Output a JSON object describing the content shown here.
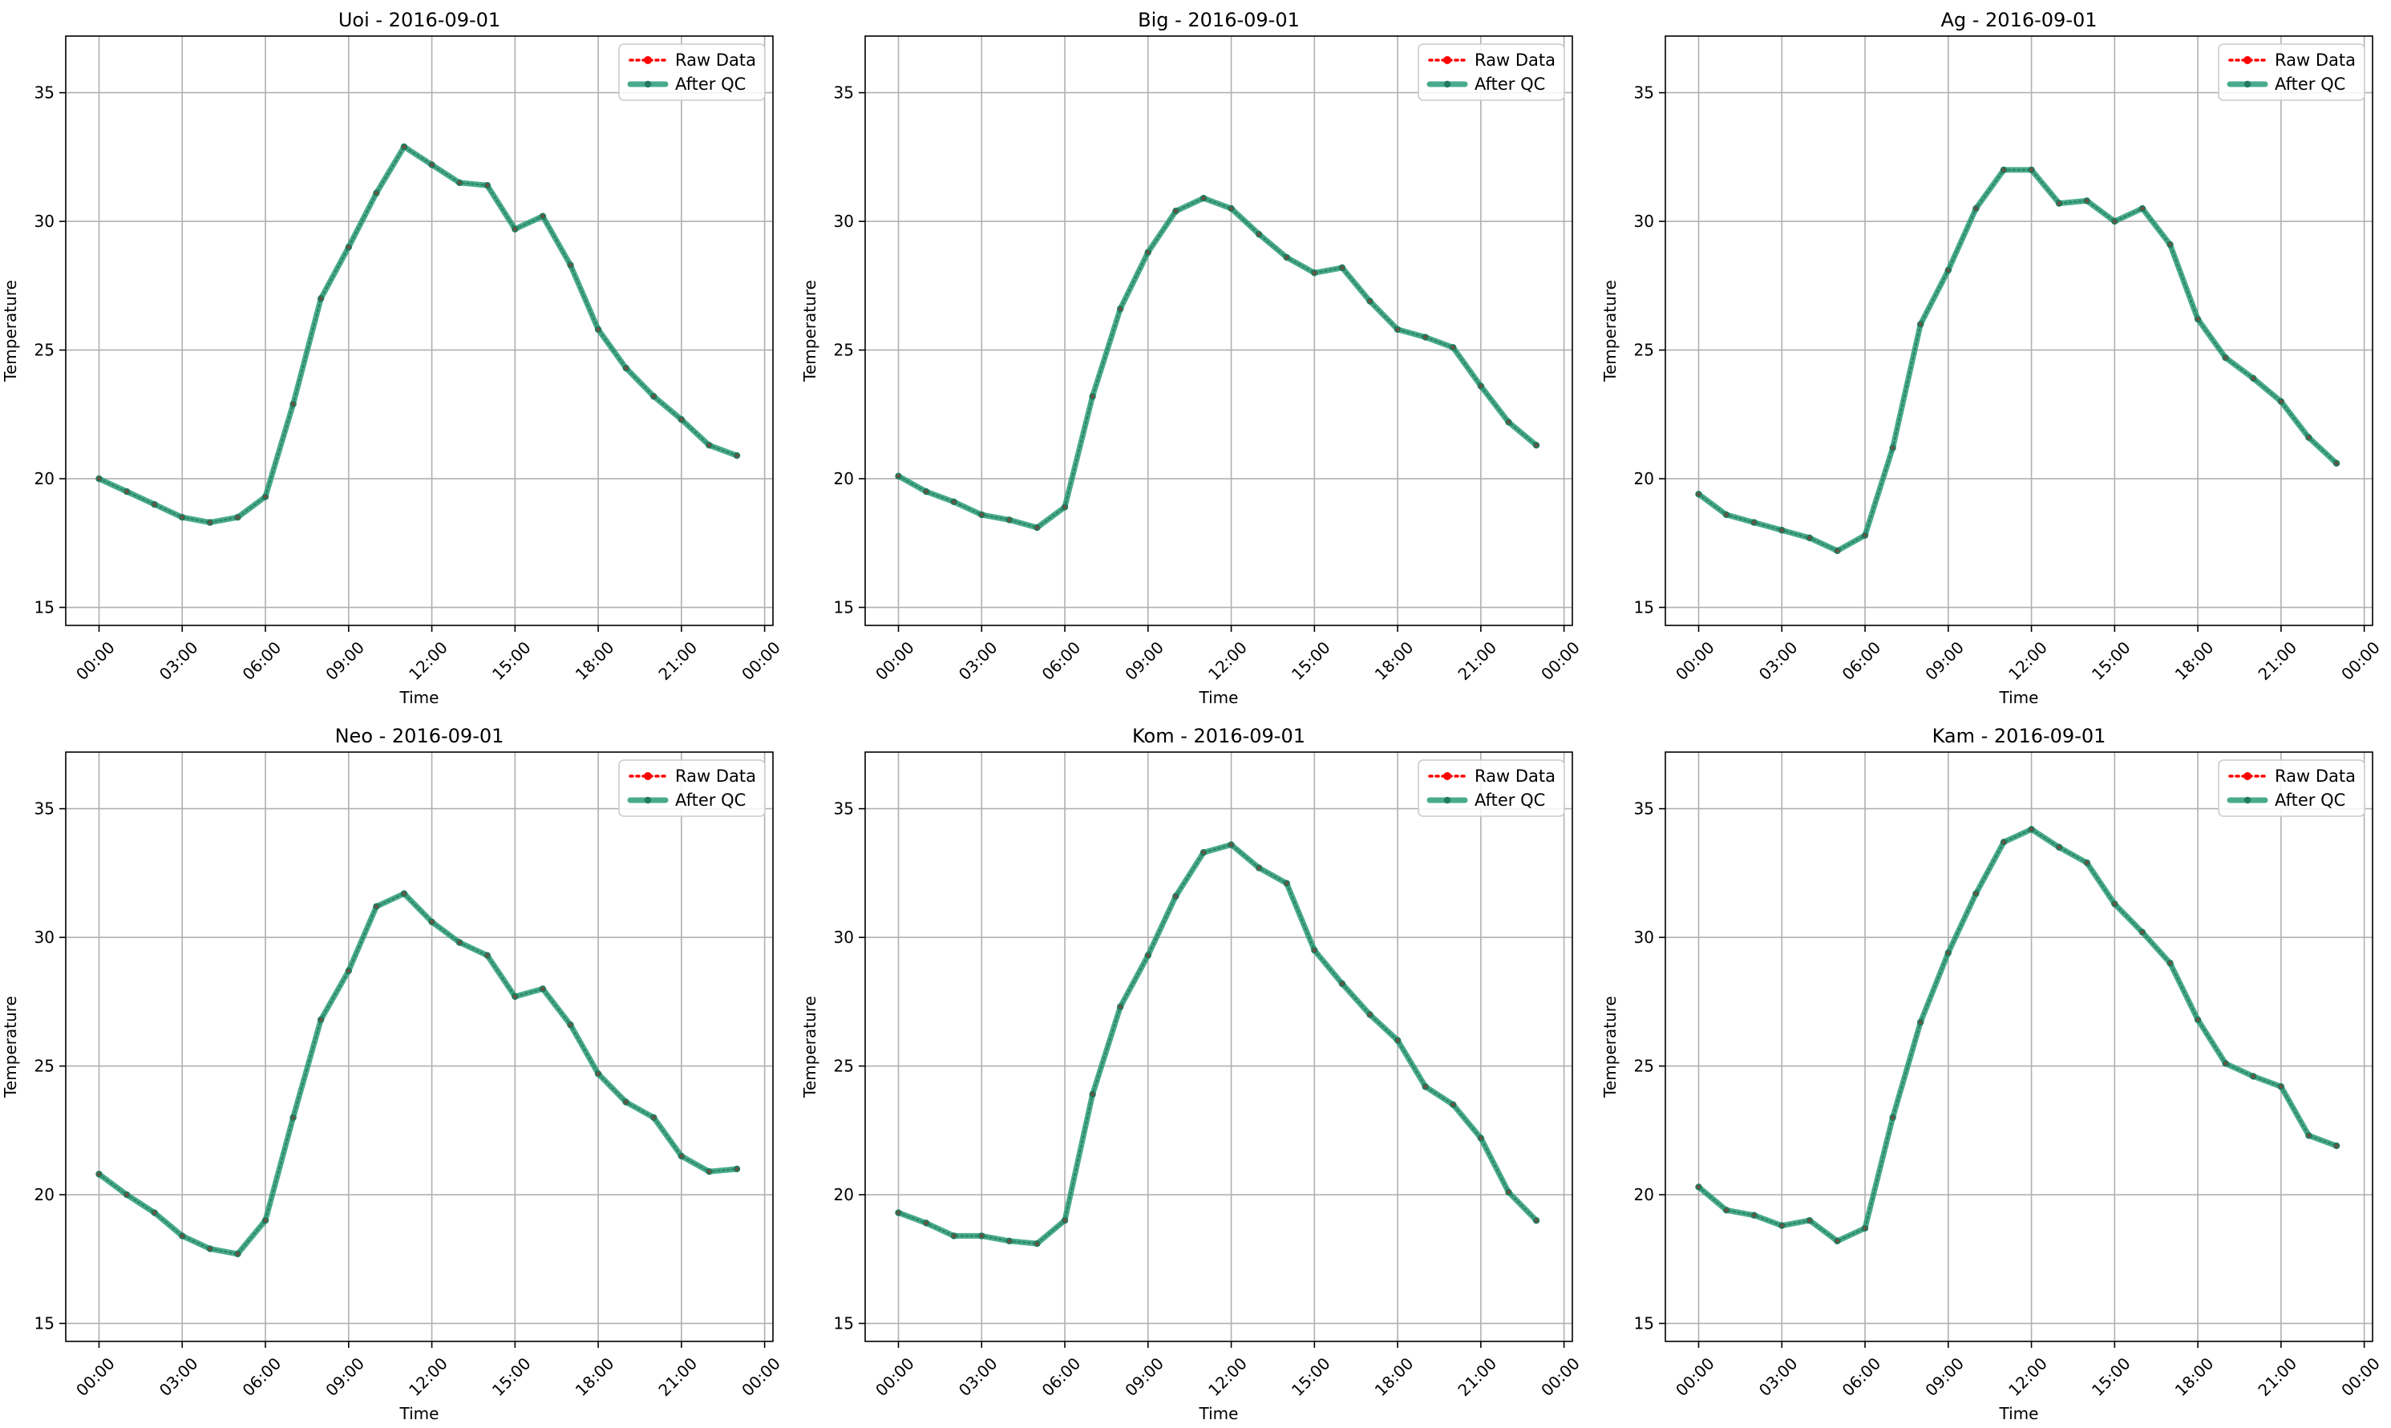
{
  "figure": {
    "background": "#ffffff"
  },
  "colors": {
    "raw": "#ff0000",
    "qc": "#2a9d78",
    "qc_marker": "#237a5f",
    "grid": "#b0b0b0"
  },
  "chart_data": [
    {
      "type": "line",
      "title": "Uoi - 2016-09-01",
      "xlabel": "Time",
      "ylabel": "Temperature",
      "xlim": [
        -1.2,
        24.3
      ],
      "ylim": [
        14.3,
        37.2
      ],
      "x_ticks": [
        0,
        3,
        6,
        9,
        12,
        15,
        18,
        21,
        24
      ],
      "x_tick_labels": [
        "00:00",
        "03:00",
        "06:00",
        "09:00",
        "12:00",
        "15:00",
        "18:00",
        "21:00",
        "00:00"
      ],
      "y_ticks": [
        15,
        20,
        25,
        30,
        35
      ],
      "y_tick_labels": [
        "15",
        "20",
        "25",
        "30",
        "35"
      ],
      "grid": true,
      "legend_position": "top-right",
      "x": [
        0,
        1,
        2,
        3,
        4,
        5,
        6,
        7,
        8,
        9,
        10,
        11,
        12,
        13,
        14,
        15,
        16,
        17,
        18,
        19,
        20,
        21,
        22,
        23
      ],
      "series": [
        {
          "name": "Raw Data",
          "style": "dotted",
          "values": [
            20.0,
            19.5,
            19.0,
            18.5,
            18.3,
            18.5,
            19.3,
            22.9,
            27.0,
            29.0,
            31.1,
            32.9,
            32.2,
            31.5,
            31.4,
            29.7,
            30.2,
            28.3,
            25.8,
            24.3,
            23.2,
            22.3,
            21.3,
            20.9
          ]
        },
        {
          "name": "After QC",
          "style": "solid",
          "values": [
            20.0,
            19.5,
            19.0,
            18.5,
            18.3,
            18.5,
            19.3,
            22.9,
            27.0,
            29.0,
            31.1,
            32.9,
            32.2,
            31.5,
            31.4,
            29.7,
            30.2,
            28.3,
            25.8,
            24.3,
            23.2,
            22.3,
            21.3,
            20.9
          ]
        }
      ]
    },
    {
      "type": "line",
      "title": "Big - 2016-09-01",
      "xlabel": "Time",
      "ylabel": "Temperature",
      "xlim": [
        -1.2,
        24.3
      ],
      "ylim": [
        14.3,
        37.2
      ],
      "x_ticks": [
        0,
        3,
        6,
        9,
        12,
        15,
        18,
        21,
        24
      ],
      "x_tick_labels": [
        "00:00",
        "03:00",
        "06:00",
        "09:00",
        "12:00",
        "15:00",
        "18:00",
        "21:00",
        "00:00"
      ],
      "y_ticks": [
        15,
        20,
        25,
        30,
        35
      ],
      "y_tick_labels": [
        "15",
        "20",
        "25",
        "30",
        "35"
      ],
      "grid": true,
      "legend_position": "top-right",
      "x": [
        0,
        1,
        2,
        3,
        4,
        5,
        6,
        7,
        8,
        9,
        10,
        11,
        12,
        13,
        14,
        15,
        16,
        17,
        18,
        19,
        20,
        21,
        22,
        23
      ],
      "series": [
        {
          "name": "Raw Data",
          "style": "dotted",
          "values": [
            20.1,
            19.5,
            19.1,
            18.6,
            18.4,
            18.1,
            18.9,
            23.2,
            26.6,
            28.8,
            30.4,
            30.9,
            30.5,
            29.5,
            28.6,
            28.0,
            28.2,
            26.9,
            25.8,
            25.5,
            25.1,
            23.6,
            22.2,
            21.3
          ]
        },
        {
          "name": "After QC",
          "style": "solid",
          "values": [
            20.1,
            19.5,
            19.1,
            18.6,
            18.4,
            18.1,
            18.9,
            23.2,
            26.6,
            28.8,
            30.4,
            30.9,
            30.5,
            29.5,
            28.6,
            28.0,
            28.2,
            26.9,
            25.8,
            25.5,
            25.1,
            23.6,
            22.2,
            21.3
          ]
        }
      ]
    },
    {
      "type": "line",
      "title": "Ag - 2016-09-01",
      "xlabel": "Time",
      "ylabel": "Temperature",
      "xlim": [
        -1.2,
        24.3
      ],
      "ylim": [
        14.3,
        37.2
      ],
      "x_ticks": [
        0,
        3,
        6,
        9,
        12,
        15,
        18,
        21,
        24
      ],
      "x_tick_labels": [
        "00:00",
        "03:00",
        "06:00",
        "09:00",
        "12:00",
        "15:00",
        "18:00",
        "21:00",
        "00:00"
      ],
      "y_ticks": [
        15,
        20,
        25,
        30,
        35
      ],
      "y_tick_labels": [
        "15",
        "20",
        "25",
        "30",
        "35"
      ],
      "grid": true,
      "legend_position": "top-right",
      "x": [
        0,
        1,
        2,
        3,
        4,
        5,
        6,
        7,
        8,
        9,
        10,
        11,
        12,
        13,
        14,
        15,
        16,
        17,
        18,
        19,
        20,
        21,
        22,
        23
      ],
      "series": [
        {
          "name": "Raw Data",
          "style": "dotted",
          "values": [
            19.4,
            18.6,
            18.3,
            18.0,
            17.7,
            17.2,
            17.8,
            21.2,
            26.0,
            28.1,
            30.5,
            32.0,
            32.0,
            30.7,
            30.8,
            30.0,
            30.5,
            29.1,
            26.2,
            24.7,
            23.9,
            23.0,
            21.6,
            20.6
          ]
        },
        {
          "name": "After QC",
          "style": "solid",
          "values": [
            19.4,
            18.6,
            18.3,
            18.0,
            17.7,
            17.2,
            17.8,
            21.2,
            26.0,
            28.1,
            30.5,
            32.0,
            32.0,
            30.7,
            30.8,
            30.0,
            30.5,
            29.1,
            26.2,
            24.7,
            23.9,
            23.0,
            21.6,
            20.6
          ]
        }
      ]
    },
    {
      "type": "line",
      "title": "Neo - 2016-09-01",
      "xlabel": "Time",
      "ylabel": "Temperature",
      "xlim": [
        -1.2,
        24.3
      ],
      "ylim": [
        14.3,
        37.2
      ],
      "x_ticks": [
        0,
        3,
        6,
        9,
        12,
        15,
        18,
        21,
        24
      ],
      "x_tick_labels": [
        "00:00",
        "03:00",
        "06:00",
        "09:00",
        "12:00",
        "15:00",
        "18:00",
        "21:00",
        "00:00"
      ],
      "y_ticks": [
        15,
        20,
        25,
        30,
        35
      ],
      "y_tick_labels": [
        "15",
        "20",
        "25",
        "30",
        "35"
      ],
      "grid": true,
      "legend_position": "top-right",
      "x": [
        0,
        1,
        2,
        3,
        4,
        5,
        6,
        7,
        8,
        9,
        10,
        11,
        12,
        13,
        14,
        15,
        16,
        17,
        18,
        19,
        20,
        21,
        22,
        23
      ],
      "series": [
        {
          "name": "Raw Data",
          "style": "dotted",
          "values": [
            20.8,
            20.0,
            19.3,
            18.4,
            17.9,
            17.7,
            19.0,
            23.0,
            26.8,
            28.7,
            31.2,
            31.7,
            30.6,
            29.8,
            29.3,
            27.7,
            28.0,
            26.6,
            24.7,
            23.6,
            23.0,
            21.5,
            20.9,
            21.0
          ]
        },
        {
          "name": "After QC",
          "style": "solid",
          "values": [
            20.8,
            20.0,
            19.3,
            18.4,
            17.9,
            17.7,
            19.0,
            23.0,
            26.8,
            28.7,
            31.2,
            31.7,
            30.6,
            29.8,
            29.3,
            27.7,
            28.0,
            26.6,
            24.7,
            23.6,
            23.0,
            21.5,
            20.9,
            21.0
          ]
        }
      ]
    },
    {
      "type": "line",
      "title": "Kom - 2016-09-01",
      "xlabel": "Time",
      "ylabel": "Temperature",
      "xlim": [
        -1.2,
        24.3
      ],
      "ylim": [
        14.3,
        37.2
      ],
      "x_ticks": [
        0,
        3,
        6,
        9,
        12,
        15,
        18,
        21,
        24
      ],
      "x_tick_labels": [
        "00:00",
        "03:00",
        "06:00",
        "09:00",
        "12:00",
        "15:00",
        "18:00",
        "21:00",
        "00:00"
      ],
      "y_ticks": [
        15,
        20,
        25,
        30,
        35
      ],
      "y_tick_labels": [
        "15",
        "20",
        "25",
        "30",
        "35"
      ],
      "grid": true,
      "legend_position": "top-right",
      "x": [
        0,
        1,
        2,
        3,
        4,
        5,
        6,
        7,
        8,
        9,
        10,
        11,
        12,
        13,
        14,
        15,
        16,
        17,
        18,
        19,
        20,
        21,
        22,
        23
      ],
      "series": [
        {
          "name": "Raw Data",
          "style": "dotted",
          "values": [
            19.3,
            18.9,
            18.4,
            18.4,
            18.2,
            18.1,
            19.0,
            23.9,
            27.3,
            29.3,
            31.6,
            33.3,
            33.6,
            32.7,
            32.1,
            29.5,
            28.2,
            27.0,
            26.0,
            24.2,
            23.5,
            22.2,
            20.1,
            19.0
          ]
        },
        {
          "name": "After QC",
          "style": "solid",
          "values": [
            19.3,
            18.9,
            18.4,
            18.4,
            18.2,
            18.1,
            19.0,
            23.9,
            27.3,
            29.3,
            31.6,
            33.3,
            33.6,
            32.7,
            32.1,
            29.5,
            28.2,
            27.0,
            26.0,
            24.2,
            23.5,
            22.2,
            20.1,
            19.0
          ]
        }
      ]
    },
    {
      "type": "line",
      "title": "Kam - 2016-09-01",
      "xlabel": "Time",
      "ylabel": "Temperature",
      "xlim": [
        -1.2,
        24.3
      ],
      "ylim": [
        14.3,
        37.2
      ],
      "x_ticks": [
        0,
        3,
        6,
        9,
        12,
        15,
        18,
        21,
        24
      ],
      "x_tick_labels": [
        "00:00",
        "03:00",
        "06:00",
        "09:00",
        "12:00",
        "15:00",
        "18:00",
        "21:00",
        "00:00"
      ],
      "y_ticks": [
        15,
        20,
        25,
        30,
        35
      ],
      "y_tick_labels": [
        "15",
        "20",
        "25",
        "30",
        "35"
      ],
      "grid": true,
      "legend_position": "top-right",
      "x": [
        0,
        1,
        2,
        3,
        4,
        5,
        6,
        7,
        8,
        9,
        10,
        11,
        12,
        13,
        14,
        15,
        16,
        17,
        18,
        19,
        20,
        21,
        22,
        23
      ],
      "series": [
        {
          "name": "Raw Data",
          "style": "dotted",
          "values": [
            20.3,
            19.4,
            19.2,
            18.8,
            19.0,
            18.2,
            18.7,
            23.0,
            26.7,
            29.4,
            31.7,
            33.7,
            34.2,
            33.5,
            32.9,
            31.3,
            30.2,
            29.0,
            26.8,
            25.1,
            24.6,
            24.2,
            22.3,
            21.9
          ]
        },
        {
          "name": "After QC",
          "style": "solid",
          "values": [
            20.3,
            19.4,
            19.2,
            18.8,
            19.0,
            18.2,
            18.7,
            23.0,
            26.7,
            29.4,
            31.7,
            33.7,
            34.2,
            33.5,
            32.9,
            31.3,
            30.2,
            29.0,
            26.8,
            25.1,
            24.6,
            24.2,
            22.3,
            21.9
          ]
        }
      ]
    }
  ]
}
